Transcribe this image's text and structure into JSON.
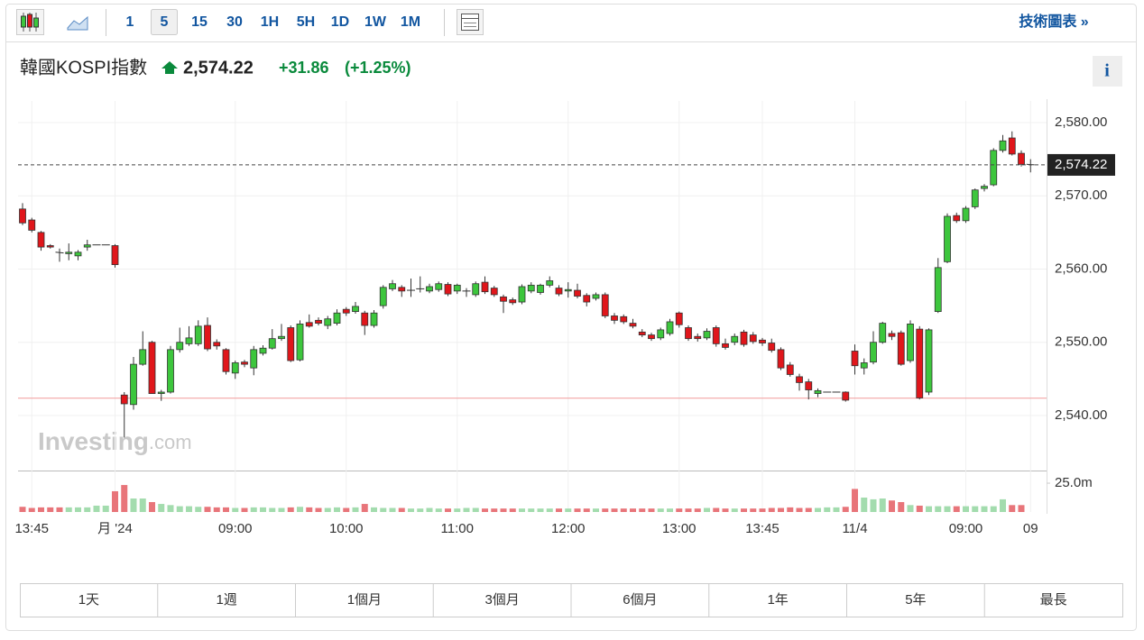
{
  "toolbar": {
    "intervals": [
      "1",
      "5",
      "15",
      "30",
      "1H",
      "5H",
      "1D",
      "1W",
      "1M"
    ],
    "link": "技術圖表 »",
    "info": "i"
  },
  "header": {
    "title": "韓國KOSPI指數",
    "price": "2,574.22",
    "change": "+31.86",
    "change_pct": "(+1.25%)"
  },
  "ranges": [
    "1天",
    "1週",
    "1個月",
    "3個月",
    "6個月",
    "1年",
    "5年",
    "最長"
  ],
  "watermark": "Investing",
  "watermark_suffix": ".com",
  "chart_data": {
    "type": "candlestick",
    "up_color": "#3dc63d",
    "down_color": "#e0161b",
    "up_volume_color": "#a3dcae",
    "down_volume_color": "#e8757a",
    "grid": true,
    "ylim": [
      2532.49,
      2582.95
    ],
    "yticks": [
      {
        "value": 2540,
        "label": "2,540.00"
      },
      {
        "value": 2550,
        "label": "2,550.00"
      },
      {
        "value": 2560,
        "label": "2,560.00"
      },
      {
        "value": 2570,
        "label": "2,570.00"
      },
      {
        "value": 2580,
        "label": "2,580.00"
      }
    ],
    "last_price": {
      "value": 2574.22,
      "label": "2,574.22"
    },
    "reference_line": 2542.36,
    "volume_lim": [
      0,
      34.4
    ],
    "volume_ticks": [
      {
        "value": 25,
        "label": "25.0m"
      }
    ],
    "categories": [
      null,
      "13:45",
      null,
      null,
      null,
      null,
      null,
      null,
      null,
      null,
      "月 '24",
      null,
      null,
      null,
      null,
      null,
      null,
      null,
      null,
      null,
      null,
      null,
      null,
      "09:00",
      null,
      null,
      null,
      null,
      null,
      null,
      null,
      null,
      null,
      null,
      null,
      "10:00",
      null,
      null,
      null,
      null,
      null,
      null,
      null,
      null,
      null,
      null,
      null,
      "11:00",
      null,
      null,
      null,
      null,
      null,
      null,
      null,
      null,
      null,
      null,
      null,
      "12:00",
      null,
      null,
      null,
      null,
      null,
      null,
      null,
      null,
      null,
      null,
      null,
      "13:00",
      null,
      null,
      null,
      null,
      null,
      null,
      null,
      null,
      "13:45",
      null,
      null,
      null,
      null,
      null,
      null,
      null,
      null,
      null,
      "11/4",
      null,
      null,
      null,
      null,
      null,
      null,
      null,
      null,
      null,
      null,
      null,
      "09:00",
      null,
      null,
      null,
      null,
      null,
      null,
      "09"
    ],
    "ohlc": [
      [
        2568.2,
        2569,
        2566,
        2566.3
      ],
      [
        2566.7,
        2567,
        2565,
        2565.3
      ],
      [
        2565,
        2565.2,
        2562.5,
        2563
      ],
      [
        2563.2,
        2563.4,
        2562.8,
        2563
      ],
      [
        2562.3,
        2562.8,
        2561,
        2562.2
      ],
      [
        2562.1,
        2563.5,
        2561.2,
        2562.3
      ],
      [
        2561.8,
        2562.6,
        2561.2,
        2562.3
      ],
      [
        2563,
        2564,
        2562.5,
        2563.3
      ],
      [
        2563.3,
        2563.3,
        2563.3,
        2563.3
      ],
      [
        2563.3,
        2563.3,
        2563.3,
        2563.3
      ],
      [
        2563.2,
        2563.4,
        2560.2,
        2560.6
      ],
      [
        2542.8,
        2543.2,
        2537,
        2541.6
      ],
      [
        2541.5,
        2548,
        2540.8,
        2547
      ],
      [
        2547,
        2551.5,
        2546.8,
        2549
      ],
      [
        2550,
        2550.2,
        2543,
        2543
      ],
      [
        2543,
        2543.5,
        2542,
        2543.2
      ],
      [
        2543.2,
        2549.5,
        2543,
        2549
      ],
      [
        2549,
        2552,
        2548.6,
        2550
      ],
      [
        2549.8,
        2552.2,
        2549.5,
        2550.6
      ],
      [
        2549.8,
        2553,
        2549.5,
        2552.2
      ],
      [
        2552.3,
        2553.4,
        2548.8,
        2549.1
      ],
      [
        2550,
        2550.4,
        2549,
        2549.5
      ],
      [
        2549,
        2549.2,
        2545.6,
        2546
      ],
      [
        2545.8,
        2547.5,
        2545,
        2547.2
      ],
      [
        2547.3,
        2547.6,
        2546.6,
        2547
      ],
      [
        2546.5,
        2549.5,
        2545.5,
        2549
      ],
      [
        2548.5,
        2549.6,
        2548.2,
        2549.2
      ],
      [
        2549.2,
        2551.8,
        2549,
        2550.5
      ],
      [
        2550.5,
        2552.5,
        2550.2,
        2550.8
      ],
      [
        2552,
        2552.3,
        2547.3,
        2547.5
      ],
      [
        2547.6,
        2553,
        2547.4,
        2552.5
      ],
      [
        2552.7,
        2553.8,
        2552,
        2552.2
      ],
      [
        2553,
        2553.4,
        2552.3,
        2552.6
      ],
      [
        2552.3,
        2553.6,
        2551.8,
        2553.2
      ],
      [
        2552.6,
        2554.5,
        2552.3,
        2554
      ],
      [
        2554.5,
        2554.8,
        2553.6,
        2554
      ],
      [
        2554.2,
        2555.5,
        2553.9,
        2554.9
      ],
      [
        2554,
        2554.3,
        2551,
        2552.3
      ],
      [
        2552.3,
        2554.4,
        2552,
        2554
      ],
      [
        2555,
        2557.8,
        2554.6,
        2557.5
      ],
      [
        2557.3,
        2558.5,
        2557,
        2558
      ],
      [
        2557.5,
        2557.8,
        2556.2,
        2557
      ],
      [
        2557.1,
        2558.7,
        2556.2,
        2557.1
      ],
      [
        2557.3,
        2559,
        2556.8,
        2557.3
      ],
      [
        2557,
        2558,
        2556.7,
        2557.6
      ],
      [
        2557.2,
        2558.3,
        2556.9,
        2558
      ],
      [
        2557.9,
        2558.2,
        2556.3,
        2556.6
      ],
      [
        2557,
        2558,
        2556.6,
        2557.8
      ],
      [
        2557,
        2557.4,
        2556.2,
        2557
      ],
      [
        2556.5,
        2558.3,
        2556.2,
        2558
      ],
      [
        2558.2,
        2559,
        2556.6,
        2556.9
      ],
      [
        2557.4,
        2557.7,
        2556.2,
        2556.5
      ],
      [
        2556.2,
        2556.5,
        2554,
        2555.6
      ],
      [
        2555.8,
        2556.1,
        2555.1,
        2555.4
      ],
      [
        2555.5,
        2557.9,
        2555.2,
        2557.6
      ],
      [
        2557,
        2558.2,
        2556.7,
        2557.8
      ],
      [
        2556.8,
        2558,
        2556.5,
        2557.8
      ],
      [
        2557.8,
        2559,
        2557.5,
        2558.4
      ],
      [
        2557.4,
        2557.8,
        2556.3,
        2556.6
      ],
      [
        2557,
        2558.2,
        2556.1,
        2557.2
      ],
      [
        2557.1,
        2558,
        2556,
        2556.3
      ],
      [
        2556.4,
        2556.7,
        2554.9,
        2555.5
      ],
      [
        2556,
        2556.8,
        2555.7,
        2556.5
      ],
      [
        2556.5,
        2556.8,
        2553.3,
        2553.6
      ],
      [
        2553.6,
        2554,
        2552.5,
        2553
      ],
      [
        2553.5,
        2553.8,
        2552.5,
        2552.8
      ],
      [
        2552.6,
        2553.2,
        2551.9,
        2552.2
      ],
      [
        2551.4,
        2551.8,
        2550.7,
        2551
      ],
      [
        2551,
        2551.3,
        2550.2,
        2550.5
      ],
      [
        2550.6,
        2552,
        2550.3,
        2551.7
      ],
      [
        2551.2,
        2553.2,
        2550.9,
        2552.8
      ],
      [
        2554,
        2554.2,
        2552,
        2552.4
      ],
      [
        2552,
        2552.3,
        2550.2,
        2550.5
      ],
      [
        2550.8,
        2551.2,
        2550.1,
        2550.5
      ],
      [
        2550.6,
        2551.9,
        2550.3,
        2551.5
      ],
      [
        2552,
        2552.3,
        2549.4,
        2549.8
      ],
      [
        2549.8,
        2550.5,
        2549,
        2549.3
      ],
      [
        2550,
        2551.2,
        2549.6,
        2550.8
      ],
      [
        2551.4,
        2551.7,
        2549.4,
        2549.7
      ],
      [
        2551,
        2551.4,
        2549.8,
        2550.1
      ],
      [
        2550.3,
        2550.6,
        2549.5,
        2549.9
      ],
      [
        2549.9,
        2550.5,
        2548.6,
        2548.9
      ],
      [
        2549,
        2549.3,
        2546.2,
        2546.5
      ],
      [
        2546.9,
        2547.3,
        2545.3,
        2545.6
      ],
      [
        2545.3,
        2545.7,
        2543.4,
        2544.5
      ],
      [
        2544.6,
        2545,
        2542.2,
        2543.5
      ],
      [
        2543,
        2543.7,
        2542.5,
        2543.4
      ],
      [
        2543.2,
        2543.2,
        2543.2,
        2543.2
      ],
      [
        2543.2,
        2543.2,
        2543.2,
        2543.2
      ],
      [
        2543.2,
        2543.3,
        2541.9,
        2542.1
      ],
      [
        2548.8,
        2549.7,
        2545.6,
        2546.8
      ],
      [
        2546.5,
        2547.8,
        2545.6,
        2547.2
      ],
      [
        2547.3,
        2551.5,
        2547,
        2550
      ],
      [
        2550,
        2552.8,
        2549.8,
        2552.6
      ],
      [
        2551.2,
        2551.6,
        2550.3,
        2550.8
      ],
      [
        2551.3,
        2551.6,
        2546.8,
        2547
      ],
      [
        2547.5,
        2553,
        2547.2,
        2552.5
      ],
      [
        2551.8,
        2552.2,
        2542.2,
        2542.4
      ],
      [
        2543.2,
        2551.9,
        2542.8,
        2551.7
      ],
      [
        2554.2,
        2561.5,
        2554,
        2560.2
      ],
      [
        2561,
        2567.6,
        2560.8,
        2567.2
      ],
      [
        2567.3,
        2567.7,
        2566.3,
        2566.6
      ],
      [
        2566.6,
        2568.6,
        2566.3,
        2568.3
      ],
      [
        2568.5,
        2571,
        2568.2,
        2570.8
      ],
      [
        2571,
        2571.6,
        2570.6,
        2571.3
      ],
      [
        2571.5,
        2576.5,
        2571.3,
        2576.2
      ],
      [
        2576.2,
        2578.3,
        2575.9,
        2577.5
      ],
      [
        2577.9,
        2578.8,
        2575.5,
        2575.7
      ],
      [
        2575.8,
        2576.2,
        2574,
        2574.3
      ],
      [
        2574.3,
        2575,
        2573.2,
        2574.22
      ]
    ],
    "volume": [
      4.5,
      3.5,
      4,
      4,
      4,
      4,
      4,
      4,
      5.5,
      5.5,
      18,
      23.4,
      11.7,
      11.7,
      8.6,
      7,
      6,
      5,
      5,
      4.5,
      4.5,
      4,
      4,
      3.5,
      3.5,
      4,
      4,
      3.5,
      3.5,
      4,
      4.5,
      4,
      3.5,
      3.5,
      4,
      3.5,
      4,
      7,
      4,
      3.5,
      3.5,
      3.5,
      3,
      3,
      3.5,
      3,
      3,
      3,
      3.5,
      3.5,
      3,
      3,
      3,
      3,
      3,
      3,
      3,
      3,
      3,
      3,
      3,
      3,
      3,
      3,
      3,
      3,
      3,
      3,
      3,
      3,
      3,
      3,
      3,
      3,
      3.5,
      3.5,
      3,
      3,
      3,
      3,
      3,
      3.5,
      3.5,
      4,
      3.5,
      3.5,
      3.5,
      4,
      4,
      4.5,
      20,
      12.5,
      11,
      11.7,
      10,
      8.6,
      6,
      5.5,
      5,
      5,
      5,
      5,
      5,
      5,
      5,
      5,
      11,
      6,
      6,
      null
    ]
  }
}
